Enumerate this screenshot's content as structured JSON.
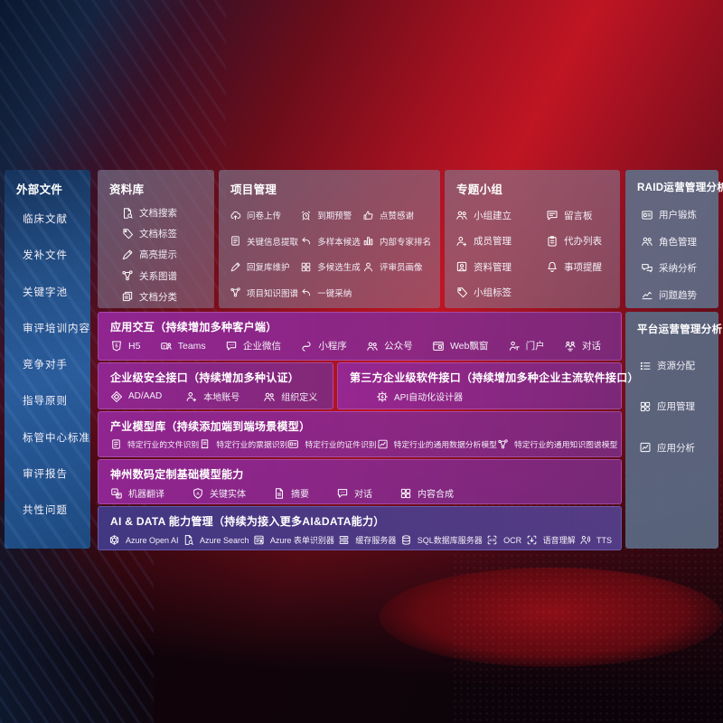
{
  "colors": {
    "accent_purple": "#8e2a93",
    "accent_indigo": "#45398a",
    "sidebar_blue": "#2a5c9c",
    "panel_gray": "#5f6e87",
    "bg_red": "#b01020"
  },
  "left_sidebar": {
    "title": "外部文件",
    "items": [
      {
        "label": "临床文献"
      },
      {
        "label": "发补文件"
      },
      {
        "label": "关键字池"
      },
      {
        "label": "审评培训内容"
      },
      {
        "label": "竞争对手"
      },
      {
        "label": "指导原则"
      },
      {
        "label": "标管中心标准"
      },
      {
        "label": "审评报告"
      },
      {
        "label": "共性问题"
      }
    ]
  },
  "library": {
    "title": "资料库",
    "items": [
      {
        "icon": "doc-search",
        "label": "文档搜索"
      },
      {
        "icon": "tag",
        "label": "文档标签"
      },
      {
        "icon": "pen",
        "label": "高亮提示"
      },
      {
        "icon": "graph",
        "label": "关系图谱"
      },
      {
        "icon": "docs",
        "label": "文档分类"
      }
    ]
  },
  "project": {
    "title": "项目管理",
    "items": [
      {
        "icon": "cloud-up",
        "label": "问卷上传"
      },
      {
        "icon": "doc-lines",
        "label": "关键信息提取"
      },
      {
        "icon": "pen",
        "label": "回复库维护"
      },
      {
        "icon": "graph",
        "label": "项目知识图谱"
      },
      {
        "icon": "alarm",
        "label": "到期预警"
      },
      {
        "icon": "arrow-back",
        "label": "多样本候选"
      },
      {
        "icon": "grid",
        "label": "多候选生成"
      },
      {
        "icon": "arrow-back",
        "label": "一键采纳"
      },
      {
        "icon": "thumb",
        "label": "点赞感谢"
      },
      {
        "icon": "rank",
        "label": "内部专家排名"
      },
      {
        "icon": "person",
        "label": "评审员画像"
      }
    ]
  },
  "groups": {
    "title": "专题小组",
    "items": [
      {
        "icon": "people",
        "label": "小组建立"
      },
      {
        "icon": "person-add",
        "label": "成员管理"
      },
      {
        "icon": "album",
        "label": "资料管理"
      },
      {
        "icon": "tag",
        "label": "小组标签"
      },
      {
        "icon": "bbs",
        "label": "留言板"
      },
      {
        "icon": "clipboard",
        "label": "代办列表"
      },
      {
        "icon": "bell",
        "label": "事项提醒"
      }
    ]
  },
  "raid": {
    "title": "RAID运营管理分析",
    "items": [
      {
        "icon": "card",
        "label": "用户锻炼"
      },
      {
        "icon": "people",
        "label": "角色管理"
      },
      {
        "icon": "chat-qa",
        "label": "采纳分析"
      },
      {
        "icon": "trend",
        "label": "问题趋势"
      }
    ]
  },
  "platform": {
    "title": "平台运营管理分析",
    "items": [
      {
        "icon": "list",
        "label": "资源分配"
      },
      {
        "icon": "apps",
        "label": "应用管理"
      },
      {
        "icon": "chart-box",
        "label": "应用分析"
      }
    ]
  },
  "interaction": {
    "title": "应用交互（持续增加多种客户端）",
    "items": [
      {
        "icon": "h5",
        "label": "H5"
      },
      {
        "icon": "teams",
        "label": "Teams"
      },
      {
        "icon": "bubble",
        "label": "企业微信"
      },
      {
        "icon": "mini",
        "label": "小程序"
      },
      {
        "icon": "people",
        "label": "公众号"
      },
      {
        "icon": "window",
        "label": "Web飘窗"
      },
      {
        "icon": "portal",
        "label": "门户"
      },
      {
        "icon": "dialog",
        "label": "对话"
      }
    ]
  },
  "security": {
    "title": "企业级安全接口（持续增加多种认证）",
    "items": [
      {
        "icon": "shield",
        "label": "AD/AAD"
      },
      {
        "icon": "person-add",
        "label": "本地账号"
      },
      {
        "icon": "people",
        "label": "组织定义"
      }
    ]
  },
  "thirdparty": {
    "title": "第三方企业级软件接口（持续增加多种企业主流软件接口）",
    "items": [
      {
        "icon": "api-gear",
        "label": "API自动化设计器"
      }
    ]
  },
  "models": {
    "title": "产业模型库（持续添加端到端场景模型）",
    "items": [
      {
        "icon": "doc-lines",
        "label": "特定行业的文件识别"
      },
      {
        "icon": "receipt",
        "label": "特定行业的票据识别"
      },
      {
        "icon": "card",
        "label": "特定行业的证件识别"
      },
      {
        "icon": "chart-box",
        "label": "特定行业的通用数据分析模型"
      },
      {
        "icon": "graph",
        "label": "特定行业的通用知识图谱模型"
      }
    ]
  },
  "base_models": {
    "title": "神州数码定制基础模型能力",
    "items": [
      {
        "icon": "translate",
        "label": "机器翻译"
      },
      {
        "icon": "shield-a",
        "label": "关键实体"
      },
      {
        "icon": "doc",
        "label": "摘要"
      },
      {
        "icon": "bubble",
        "label": "对话"
      },
      {
        "icon": "grid",
        "label": "内容合成"
      }
    ]
  },
  "ai_data": {
    "title": "AI & DATA 能力管理（持续为接入更多AI&DATA能力）",
    "items": [
      {
        "icon": "openai",
        "label": "Azure Open AI"
      },
      {
        "icon": "doc-search",
        "label": "Azure Search"
      },
      {
        "icon": "form",
        "label": "Azure 表单识别器"
      },
      {
        "icon": "server",
        "label": "缓存服务器"
      },
      {
        "icon": "db",
        "label": "SQL数据库服务器"
      },
      {
        "icon": "ocr",
        "label": "OCR"
      },
      {
        "icon": "speech",
        "label": "语音理解"
      },
      {
        "icon": "tts",
        "label": "TTS"
      }
    ]
  }
}
